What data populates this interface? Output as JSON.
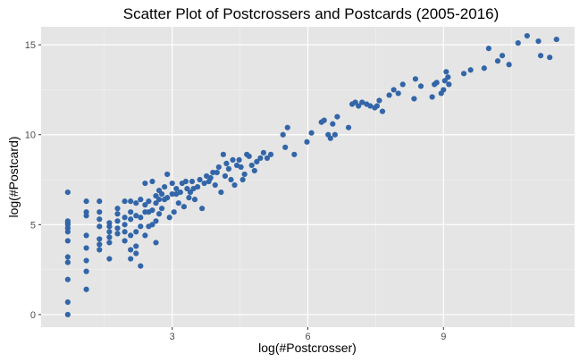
{
  "chart_data": {
    "type": "scatter",
    "title": "Scatter Plot of Postcrossers and Postcards (2005-2016)",
    "xlabel": "log(#Postcrosser)",
    "ylabel": "log(#Postcard)",
    "xlim": [
      0.1,
      11.9
    ],
    "ylim": [
      -0.7,
      16.0
    ],
    "x_ticks": [
      3,
      6,
      9
    ],
    "x_tick_labels": [
      "3",
      "6",
      "9"
    ],
    "y_ticks": [
      0,
      5,
      10,
      15
    ],
    "y_tick_labels": [
      "0",
      "5",
      "10",
      "15"
    ],
    "grid": true,
    "legend": "none",
    "point_color": "#3366a8",
    "panel_background": "#e5e5e5",
    "points": [
      [
        0.69,
        0.0
      ],
      [
        0.69,
        0.69
      ],
      [
        0.69,
        1.95
      ],
      [
        0.69,
        2.9
      ],
      [
        0.69,
        3.2
      ],
      [
        0.69,
        4.1
      ],
      [
        0.69,
        4.6
      ],
      [
        0.69,
        4.8
      ],
      [
        0.69,
        5.0
      ],
      [
        0.69,
        5.1
      ],
      [
        0.69,
        5.2
      ],
      [
        0.69,
        6.8
      ],
      [
        1.1,
        1.4
      ],
      [
        1.1,
        2.4
      ],
      [
        1.1,
        3.0
      ],
      [
        1.1,
        3.7
      ],
      [
        1.1,
        4.4
      ],
      [
        1.1,
        5.5
      ],
      [
        1.1,
        5.7
      ],
      [
        1.1,
        6.3
      ],
      [
        1.39,
        3.6
      ],
      [
        1.39,
        3.9
      ],
      [
        1.39,
        4.2
      ],
      [
        1.39,
        4.9
      ],
      [
        1.39,
        5.3
      ],
      [
        1.39,
        5.7
      ],
      [
        1.39,
        6.3
      ],
      [
        1.61,
        3.1
      ],
      [
        1.61,
        4.0
      ],
      [
        1.61,
        4.3
      ],
      [
        1.61,
        4.6
      ],
      [
        1.61,
        4.9
      ],
      [
        1.61,
        5.1
      ],
      [
        1.79,
        4.5
      ],
      [
        1.79,
        4.8
      ],
      [
        1.79,
        5.2
      ],
      [
        1.79,
        5.6
      ],
      [
        1.79,
        5.9
      ],
      [
        1.95,
        4.1
      ],
      [
        1.95,
        4.6
      ],
      [
        1.95,
        5.0
      ],
      [
        1.95,
        5.4
      ],
      [
        1.95,
        6.3
      ],
      [
        2.08,
        3.1
      ],
      [
        2.08,
        3.6
      ],
      [
        2.08,
        4.4
      ],
      [
        2.08,
        5.3
      ],
      [
        2.08,
        5.7
      ],
      [
        2.08,
        6.3
      ],
      [
        2.2,
        3.4
      ],
      [
        2.2,
        3.8
      ],
      [
        2.2,
        4.6
      ],
      [
        2.2,
        5.5
      ],
      [
        2.2,
        6.2
      ],
      [
        2.3,
        2.7
      ],
      [
        2.3,
        4.9
      ],
      [
        2.3,
        5.4
      ],
      [
        2.3,
        6.4
      ],
      [
        2.4,
        4.4
      ],
      [
        2.4,
        5.7
      ],
      [
        2.4,
        6.1
      ],
      [
        2.4,
        7.3
      ],
      [
        2.48,
        4.9
      ],
      [
        2.48,
        5.7
      ],
      [
        2.48,
        6.3
      ],
      [
        2.56,
        5.0
      ],
      [
        2.56,
        5.8
      ],
      [
        2.56,
        7.4
      ],
      [
        2.64,
        4.0
      ],
      [
        2.64,
        5.2
      ],
      [
        2.64,
        6.2
      ],
      [
        2.64,
        6.6
      ],
      [
        2.71,
        5.6
      ],
      [
        2.71,
        6.4
      ],
      [
        2.71,
        6.9
      ],
      [
        2.77,
        5.9
      ],
      [
        2.77,
        6.7
      ],
      [
        2.83,
        6.4
      ],
      [
        2.83,
        7.1
      ],
      [
        2.89,
        6.5
      ],
      [
        2.89,
        7.8
      ],
      [
        2.94,
        5.4
      ],
      [
        3.0,
        6.7
      ],
      [
        3.0,
        7.3
      ],
      [
        3.04,
        5.7
      ],
      [
        3.09,
        6.7
      ],
      [
        3.09,
        7.0
      ],
      [
        3.14,
        6.2
      ],
      [
        3.18,
        6.8
      ],
      [
        3.22,
        7.3
      ],
      [
        3.26,
        6.0
      ],
      [
        3.3,
        7.4
      ],
      [
        3.33,
        7.0
      ],
      [
        3.37,
        6.5
      ],
      [
        3.4,
        6.8
      ],
      [
        3.44,
        7.4
      ],
      [
        3.47,
        7.0
      ],
      [
        3.5,
        6.4
      ],
      [
        3.56,
        7.1
      ],
      [
        3.61,
        7.5
      ],
      [
        3.66,
        5.9
      ],
      [
        3.71,
        7.3
      ],
      [
        3.76,
        7.7
      ],
      [
        3.81,
        7.4
      ],
      [
        3.85,
        7.6
      ],
      [
        3.9,
        7.9
      ],
      [
        3.95,
        7.2
      ],
      [
        3.99,
        7.9
      ],
      [
        4.03,
        8.2
      ],
      [
        4.08,
        6.8
      ],
      [
        4.13,
        8.9
      ],
      [
        4.17,
        7.7
      ],
      [
        4.2,
        8.4
      ],
      [
        4.25,
        8.1
      ],
      [
        4.3,
        7.5
      ],
      [
        4.34,
        8.6
      ],
      [
        4.38,
        7.2
      ],
      [
        4.43,
        8.3
      ],
      [
        4.48,
        8.6
      ],
      [
        4.52,
        8.2
      ],
      [
        4.56,
        7.5
      ],
      [
        4.6,
        7.8
      ],
      [
        4.65,
        8.9
      ],
      [
        4.7,
        8.8
      ],
      [
        4.76,
        8.3
      ],
      [
        4.82,
        8.0
      ],
      [
        4.87,
        8.5
      ],
      [
        4.95,
        8.7
      ],
      [
        5.02,
        9.0
      ],
      [
        5.1,
        8.7
      ],
      [
        5.18,
        8.9
      ],
      [
        5.45,
        10.0
      ],
      [
        5.5,
        9.3
      ],
      [
        5.55,
        10.4
      ],
      [
        5.7,
        8.9
      ],
      [
        5.98,
        9.6
      ],
      [
        6.08,
        10.1
      ],
      [
        6.3,
        10.7
      ],
      [
        6.36,
        10.8
      ],
      [
        6.45,
        10.0
      ],
      [
        6.5,
        9.8
      ],
      [
        6.55,
        10.6
      ],
      [
        6.6,
        10.0
      ],
      [
        6.65,
        11.0
      ],
      [
        6.9,
        10.4
      ],
      [
        6.98,
        11.7
      ],
      [
        7.05,
        11.8
      ],
      [
        7.12,
        11.6
      ],
      [
        7.2,
        11.8
      ],
      [
        7.3,
        11.7
      ],
      [
        7.38,
        11.6
      ],
      [
        7.48,
        11.5
      ],
      [
        7.53,
        11.6
      ],
      [
        7.58,
        11.9
      ],
      [
        7.65,
        11.3
      ],
      [
        7.8,
        12.2
      ],
      [
        7.9,
        12.5
      ],
      [
        8.0,
        12.3
      ],
      [
        8.1,
        12.8
      ],
      [
        8.35,
        12.0
      ],
      [
        8.38,
        13.1
      ],
      [
        8.5,
        12.7
      ],
      [
        8.75,
        12.1
      ],
      [
        8.8,
        12.8
      ],
      [
        8.85,
        12.9
      ],
      [
        8.95,
        12.3
      ],
      [
        9.0,
        12.5
      ],
      [
        9.03,
        13.0
      ],
      [
        9.06,
        13.5
      ],
      [
        9.1,
        13.2
      ],
      [
        9.12,
        12.8
      ],
      [
        9.45,
        13.4
      ],
      [
        9.6,
        13.6
      ],
      [
        9.9,
        13.7
      ],
      [
        10.0,
        14.8
      ],
      [
        10.2,
        14.1
      ],
      [
        10.3,
        14.4
      ],
      [
        10.45,
        13.9
      ],
      [
        10.65,
        15.1
      ],
      [
        10.85,
        15.5
      ],
      [
        11.1,
        15.2
      ],
      [
        11.15,
        14.4
      ],
      [
        11.35,
        14.3
      ],
      [
        11.5,
        15.3
      ]
    ]
  }
}
